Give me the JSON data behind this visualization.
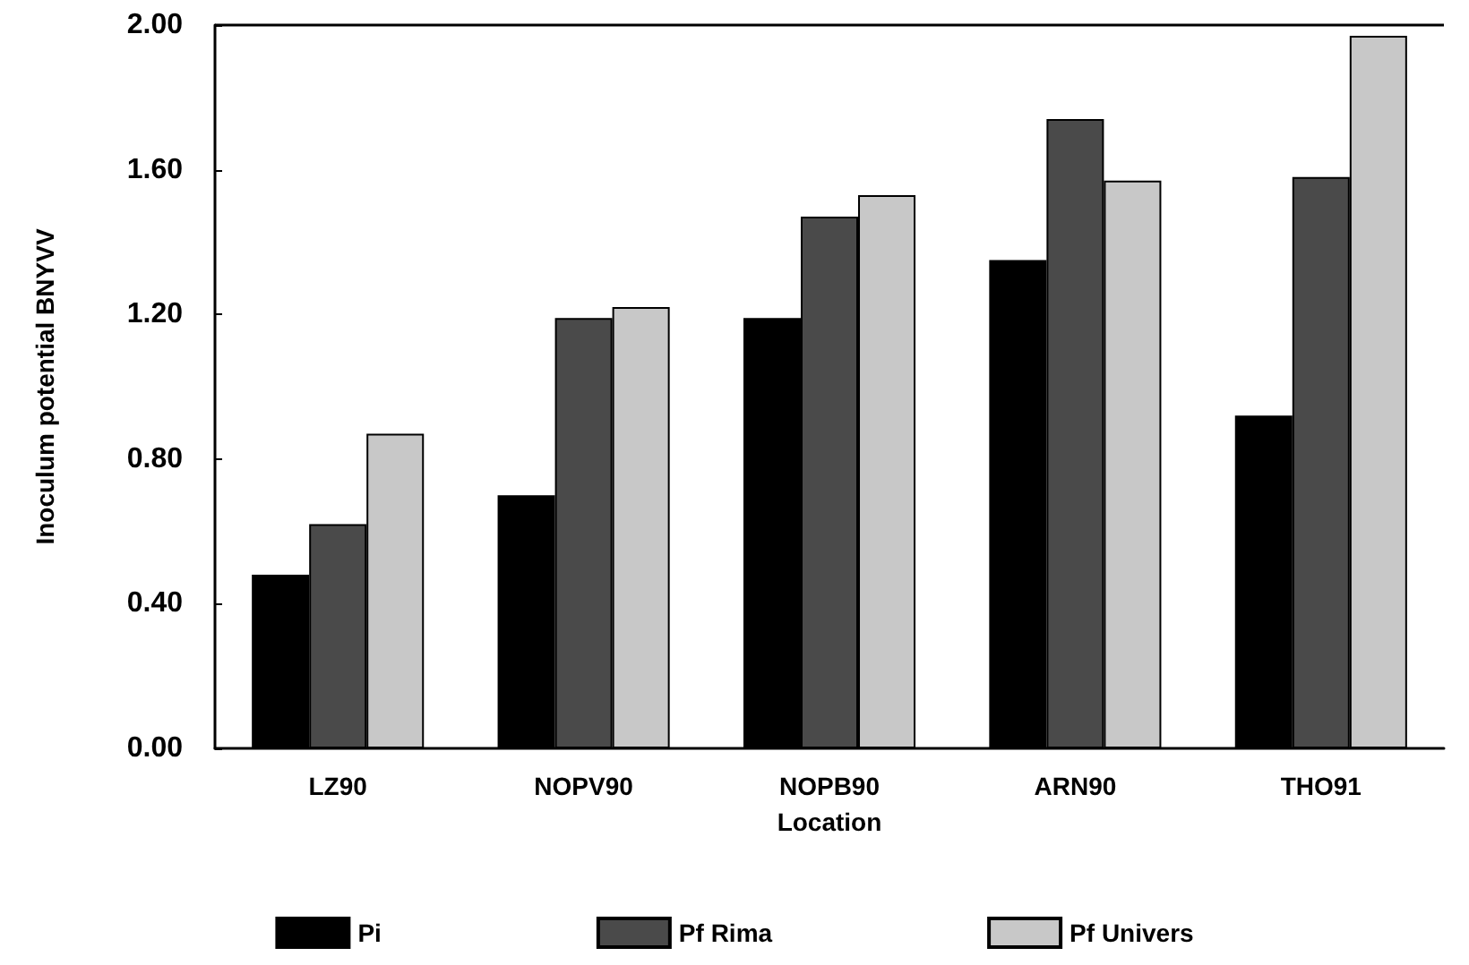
{
  "chart_data": {
    "type": "bar",
    "xlabel": "Location",
    "ylabel": "Inoculum potential BNYVV",
    "categories": [
      "LZ90",
      "NOPV90",
      "NOPB90",
      "ARN90",
      "THO91"
    ],
    "series": [
      {
        "name": "Pi",
        "color": "#000000",
        "values": [
          0.48,
          0.7,
          1.19,
          1.35,
          0.92
        ]
      },
      {
        "name": "Pf Rima",
        "color": "#4a4a4a",
        "values": [
          0.62,
          1.19,
          1.47,
          1.74,
          1.58
        ]
      },
      {
        "name": "Pf Univers",
        "color": "#c8c8c8",
        "values": [
          0.87,
          1.22,
          1.53,
          1.57,
          1.97
        ]
      }
    ],
    "ylim": [
      0,
      2
    ],
    "yticks": [
      {
        "value": 0,
        "label": "0.00"
      },
      {
        "value": 0.4,
        "label": "0.40"
      },
      {
        "value": 0.8,
        "label": "0.80"
      },
      {
        "value": 1.2,
        "label": "1.20"
      },
      {
        "value": 1.6,
        "label": "1.60"
      },
      {
        "value": 2,
        "label": "2.00"
      }
    ],
    "grid": false,
    "legend": "bottom"
  }
}
